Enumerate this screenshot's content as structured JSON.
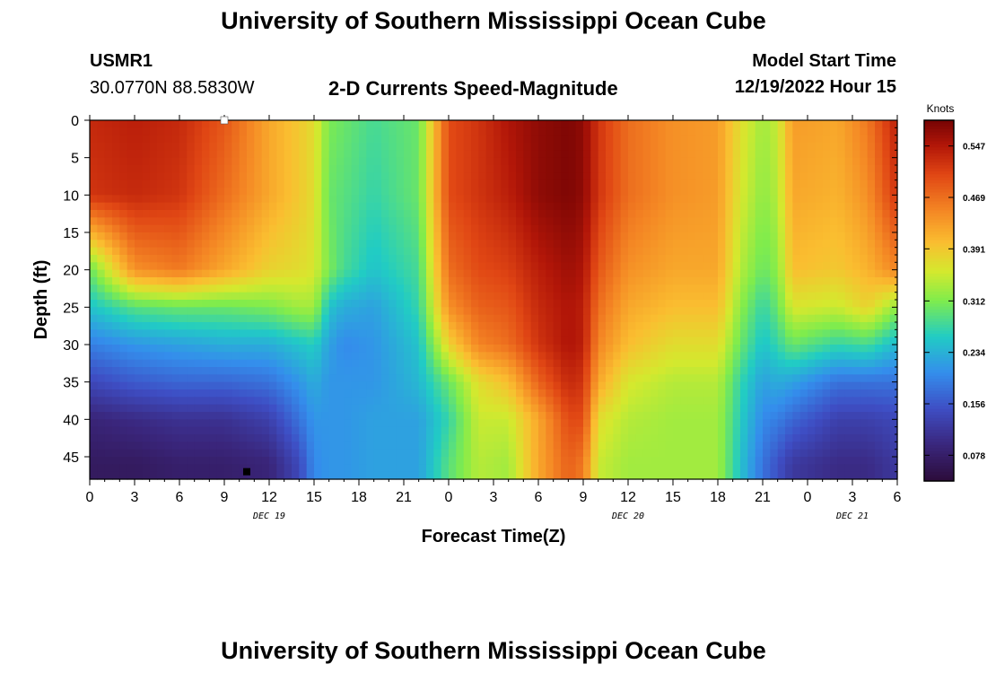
{
  "header": {
    "title": "University of Southern Mississippi Ocean Cube",
    "station_id": "USMR1",
    "coordinates": "30.0770N  88.5830W",
    "product": "2-D Currents Speed-Magnitude",
    "model_start_label": "Model Start Time",
    "model_start_value": "12/19/2022 Hour 15"
  },
  "footer": {
    "title": "University of Southern Mississippi Ocean Cube"
  },
  "chart_data": {
    "type": "heatmap",
    "xlabel": "Forecast Time(Z)",
    "ylabel": "Depth (ft)",
    "x_ticks": [
      "0",
      "3",
      "6",
      "9",
      "12",
      "15",
      "18",
      "21",
      "0",
      "3",
      "6",
      "9",
      "12",
      "15",
      "18",
      "21",
      "0",
      "3",
      "6"
    ],
    "day_labels": [
      {
        "label": "DEC 19",
        "at_tick": 4
      },
      {
        "label": "DEC 20",
        "at_tick": 12
      },
      {
        "label": "DEC 21",
        "at_tick": 17
      }
    ],
    "x_range_hours": [
      0,
      54
    ],
    "y_ticks": [
      0,
      5,
      10,
      15,
      20,
      25,
      30,
      35,
      40,
      45
    ],
    "y_range_ft": [
      0,
      48
    ],
    "colorbar": {
      "title": "Knots",
      "range": [
        0.039,
        0.586
      ],
      "ticks": [
        "0.078",
        "0.156",
        "0.234",
        "0.312",
        "0.391",
        "0.469",
        "0.547"
      ]
    },
    "speed_knots_grid": {
      "depths_ft": [
        0,
        10,
        20,
        25,
        30,
        35,
        40,
        46
      ],
      "hours": [
        0,
        3,
        6,
        9,
        12,
        14,
        15,
        16,
        17,
        19,
        22,
        24,
        26,
        28,
        30,
        32,
        33,
        34,
        36,
        39,
        42,
        43.5,
        45,
        46,
        47,
        50,
        52,
        54
      ],
      "rows": [
        [
          0.53,
          0.54,
          0.53,
          0.49,
          0.42,
          0.39,
          0.37,
          0.31,
          0.3,
          0.28,
          0.3,
          0.5,
          0.52,
          0.55,
          0.57,
          0.58,
          0.57,
          0.52,
          0.47,
          0.44,
          0.43,
          0.37,
          0.33,
          0.35,
          0.43,
          0.42,
          0.46,
          0.54
        ],
        [
          0.52,
          0.53,
          0.52,
          0.47,
          0.42,
          0.39,
          0.37,
          0.3,
          0.29,
          0.27,
          0.3,
          0.5,
          0.52,
          0.54,
          0.57,
          0.58,
          0.57,
          0.52,
          0.47,
          0.44,
          0.43,
          0.36,
          0.32,
          0.34,
          0.42,
          0.41,
          0.44,
          0.52
        ],
        [
          0.3,
          0.44,
          0.46,
          0.42,
          0.38,
          0.37,
          0.36,
          0.31,
          0.28,
          0.25,
          0.28,
          0.47,
          0.5,
          0.51,
          0.54,
          0.56,
          0.55,
          0.49,
          0.44,
          0.42,
          0.42,
          0.34,
          0.3,
          0.32,
          0.4,
          0.39,
          0.41,
          0.45
        ],
        [
          0.25,
          0.29,
          0.3,
          0.3,
          0.31,
          0.33,
          0.33,
          0.25,
          0.23,
          0.22,
          0.27,
          0.44,
          0.48,
          0.49,
          0.53,
          0.55,
          0.54,
          0.47,
          0.42,
          0.4,
          0.4,
          0.32,
          0.27,
          0.3,
          0.36,
          0.35,
          0.38,
          0.32
        ],
        [
          0.19,
          0.21,
          0.22,
          0.23,
          0.23,
          0.25,
          0.26,
          0.22,
          0.2,
          0.21,
          0.25,
          0.38,
          0.45,
          0.47,
          0.52,
          0.55,
          0.54,
          0.45,
          0.4,
          0.37,
          0.37,
          0.3,
          0.25,
          0.27,
          0.3,
          0.27,
          0.28,
          0.24
        ],
        [
          0.14,
          0.16,
          0.17,
          0.17,
          0.18,
          0.21,
          0.23,
          0.21,
          0.21,
          0.21,
          0.24,
          0.3,
          0.37,
          0.4,
          0.48,
          0.53,
          0.52,
          0.42,
          0.36,
          0.34,
          0.34,
          0.27,
          0.22,
          0.23,
          0.22,
          0.18,
          0.18,
          0.18
        ],
        [
          0.09,
          0.1,
          0.11,
          0.11,
          0.13,
          0.18,
          0.21,
          0.21,
          0.21,
          0.22,
          0.22,
          0.27,
          0.35,
          0.35,
          0.42,
          0.5,
          0.5,
          0.37,
          0.34,
          0.33,
          0.33,
          0.26,
          0.2,
          0.19,
          0.17,
          0.13,
          0.13,
          0.14
        ],
        [
          0.07,
          0.07,
          0.08,
          0.08,
          0.09,
          0.14,
          0.2,
          0.21,
          0.21,
          0.22,
          0.22,
          0.29,
          0.34,
          0.33,
          0.42,
          0.48,
          0.46,
          0.35,
          0.33,
          0.33,
          0.33,
          0.25,
          0.18,
          0.15,
          0.12,
          0.1,
          0.1,
          0.12
        ]
      ]
    },
    "markers": [
      {
        "color": "#000000",
        "hour": 10.5,
        "depth_ft": 47
      },
      {
        "color": "#ffffff",
        "hour": 9.0,
        "depth_ft": 0
      }
    ]
  }
}
